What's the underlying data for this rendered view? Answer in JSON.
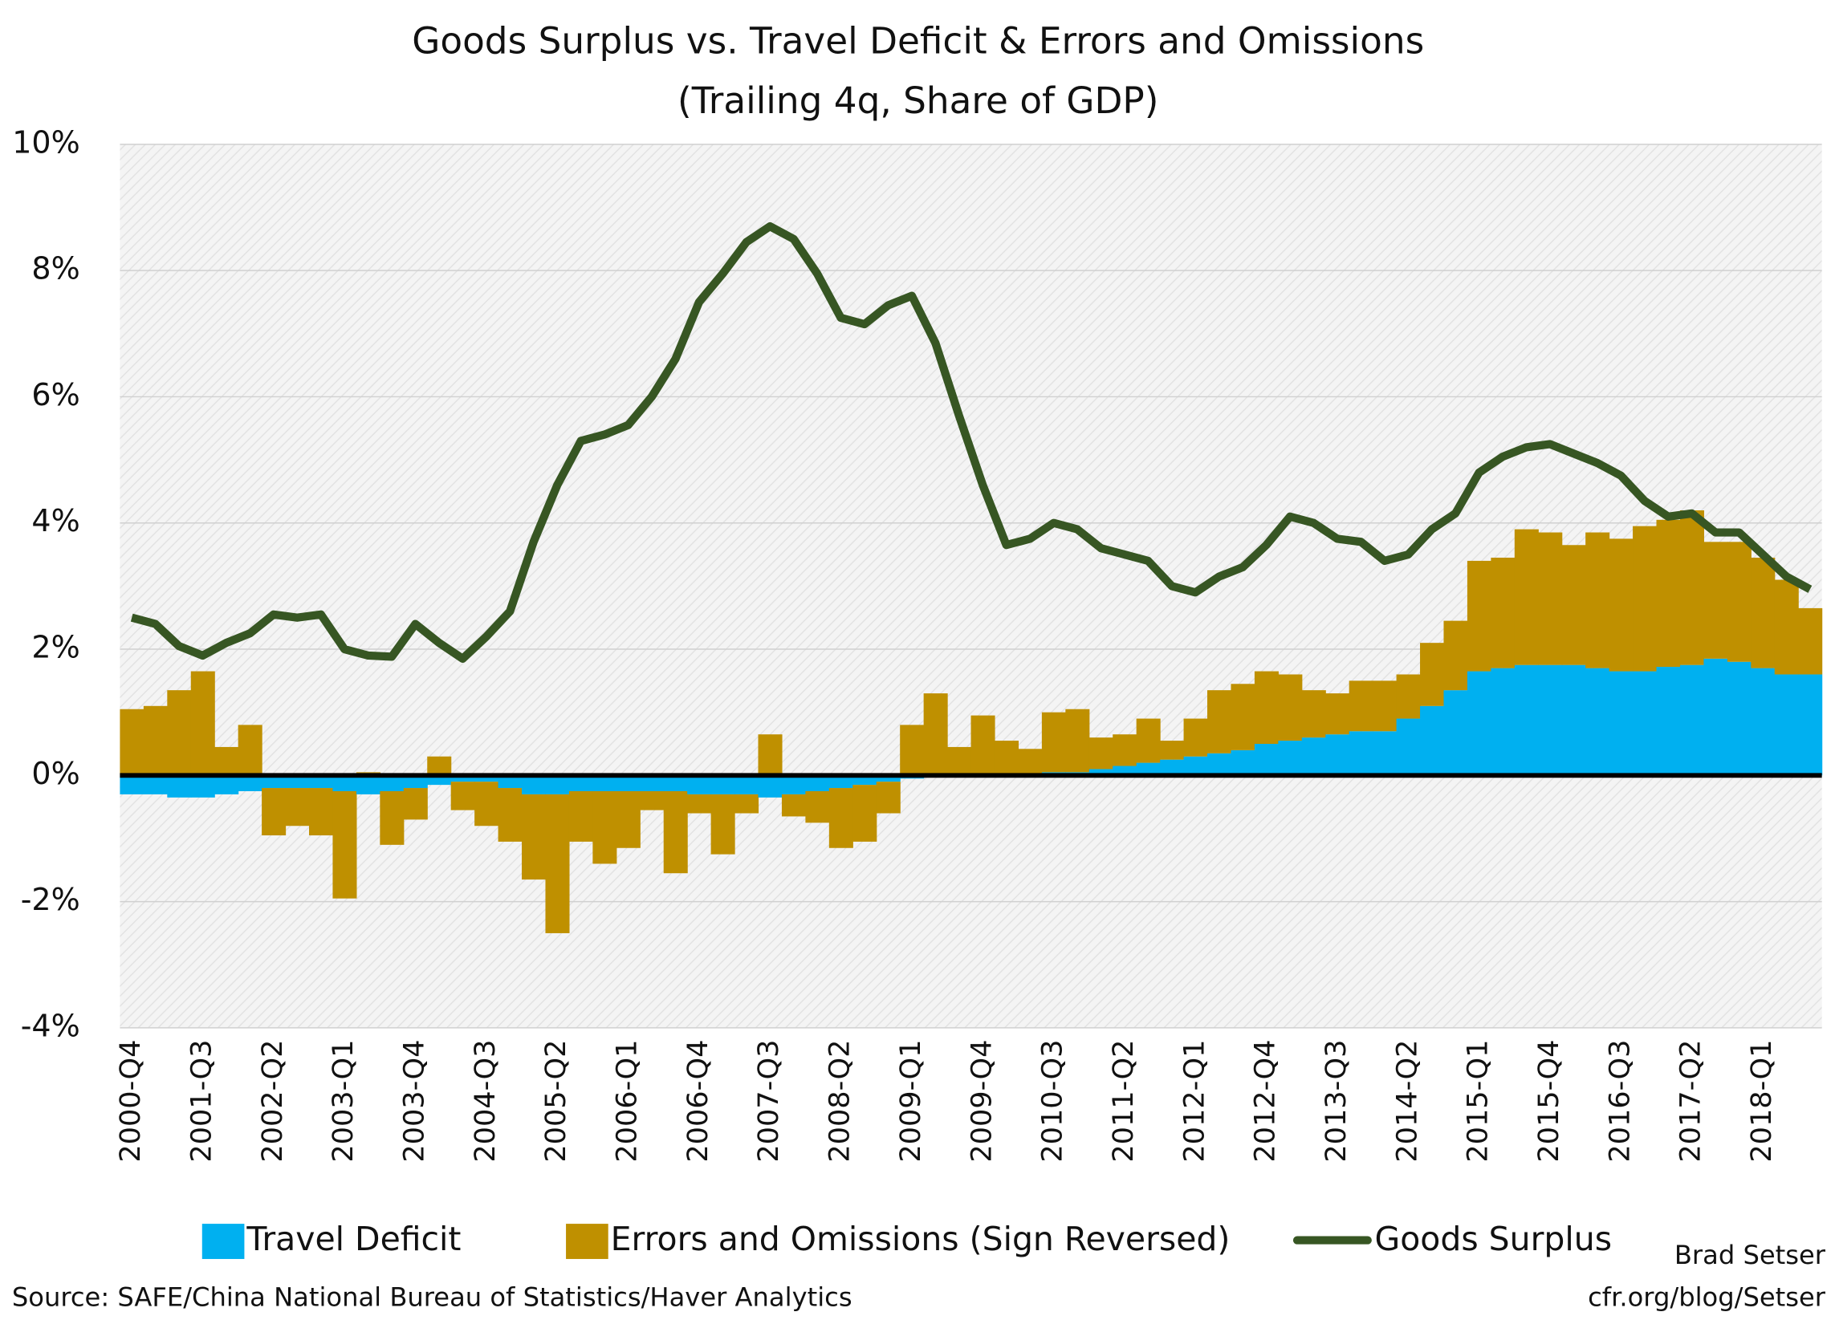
{
  "chart_data": {
    "type": "stacked_bar_line",
    "title": "Goods Surplus vs. Travel Deficit & Errors and Omissions",
    "subtitle": "(Trailing 4q, Share of GDP)",
    "categories": [
      "2000-Q4",
      null,
      null,
      "2001-Q3",
      null,
      null,
      "2002-Q2",
      null,
      null,
      "2003-Q1",
      null,
      null,
      "2003-Q4",
      null,
      null,
      "2004-Q3",
      null,
      null,
      "2005-Q2",
      null,
      null,
      "2006-Q1",
      null,
      null,
      "2006-Q4",
      null,
      null,
      "2007-Q3",
      null,
      null,
      "2008-Q2",
      null,
      null,
      "2009-Q1",
      null,
      null,
      "2009-Q4",
      null,
      null,
      "2010-Q3",
      null,
      null,
      "2011-Q2",
      null,
      null,
      "2012-Q1",
      null,
      null,
      "2012-Q4",
      null,
      null,
      "2013-Q3",
      null,
      null,
      "2014-Q2",
      null,
      null,
      "2015-Q1",
      null,
      null,
      "2015-Q4",
      null,
      null,
      "2016-Q3",
      null,
      null,
      "2017-Q2",
      null,
      null,
      "2018-Q1",
      null,
      null
    ],
    "series": [
      {
        "name": "Travel Deficit",
        "kind": "bar",
        "color": "#00b0f0",
        "values": [
          -0.3,
          -0.3,
          -0.35,
          -0.35,
          -0.3,
          -0.25,
          -0.2,
          -0.2,
          -0.2,
          -0.25,
          -0.3,
          -0.25,
          -0.2,
          -0.15,
          -0.1,
          -0.1,
          -0.2,
          -0.3,
          -0.3,
          -0.25,
          -0.25,
          -0.25,
          -0.25,
          -0.25,
          -0.3,
          -0.3,
          -0.3,
          -0.35,
          -0.3,
          -0.25,
          -0.2,
          -0.15,
          -0.1,
          -0.05,
          0,
          0,
          0,
          0,
          0.02,
          0.05,
          0.05,
          0.1,
          0.15,
          0.2,
          0.25,
          0.3,
          0.35,
          0.4,
          0.5,
          0.55,
          0.6,
          0.65,
          0.7,
          0.7,
          0.9,
          1.1,
          1.35,
          1.65,
          1.7,
          1.75,
          1.75,
          1.75,
          1.7,
          1.65,
          1.65,
          1.72,
          1.75,
          1.85,
          1.8,
          1.7,
          1.6,
          1.6
        ]
      },
      {
        "name": "Errors and Omissions (Sign Reversed)",
        "kind": "bar",
        "color": "#bf9000",
        "values": [
          1.05,
          1.1,
          1.35,
          1.65,
          0.45,
          0.8,
          -0.75,
          -0.6,
          -0.75,
          -1.7,
          0.05,
          -0.85,
          -0.5,
          0.3,
          -0.45,
          -0.7,
          -0.85,
          -1.35,
          -2.2,
          -0.8,
          -1.15,
          -0.9,
          -0.3,
          -1.3,
          -0.3,
          -0.95,
          -0.3,
          0.65,
          -0.35,
          -0.5,
          -0.95,
          -0.9,
          -0.5,
          0.8,
          1.3,
          0.45,
          0.95,
          0.55,
          0.4,
          0.95,
          1.0,
          0.5,
          0.5,
          0.7,
          0.3,
          0.6,
          1.0,
          1.05,
          1.15,
          1.05,
          0.75,
          0.65,
          0.8,
          0.8,
          0.7,
          1.0,
          1.1,
          1.75,
          1.75,
          2.15,
          2.1,
          1.9,
          2.15,
          2.1,
          2.3,
          2.33,
          2.45,
          1.85,
          1.9,
          1.75,
          1.5,
          1.05
        ]
      },
      {
        "name": "Goods Surplus",
        "kind": "line",
        "color": "#375623",
        "values": [
          2.5,
          2.4,
          2.05,
          1.9,
          2.1,
          2.25,
          2.55,
          2.5,
          2.55,
          2.0,
          1.9,
          1.88,
          2.4,
          2.1,
          1.85,
          2.2,
          2.6,
          3.7,
          4.6,
          5.3,
          5.4,
          5.55,
          6.0,
          6.6,
          7.5,
          7.95,
          8.45,
          8.7,
          8.5,
          7.95,
          7.25,
          7.15,
          7.45,
          7.6,
          6.85,
          5.7,
          4.6,
          3.65,
          3.75,
          4.0,
          3.9,
          3.6,
          3.5,
          3.4,
          3.0,
          2.9,
          3.15,
          3.3,
          3.65,
          4.1,
          4.0,
          3.75,
          3.7,
          3.4,
          3.5,
          3.9,
          4.15,
          4.8,
          5.05,
          5.2,
          5.25,
          5.1,
          4.95,
          4.75,
          4.35,
          4.1,
          4.15,
          3.85,
          3.85,
          3.5,
          3.15,
          2.95
        ]
      }
    ],
    "ylim": [
      -4,
      10
    ],
    "yticks": [
      {
        "value": -4,
        "label": "-4%"
      },
      {
        "value": -2,
        "label": "-2%"
      },
      {
        "value": 0,
        "label": "0%"
      },
      {
        "value": 2,
        "label": "2%"
      },
      {
        "value": 4,
        "label": "4%"
      },
      {
        "value": 6,
        "label": "6%"
      },
      {
        "value": 8,
        "label": "8%"
      },
      {
        "value": 10,
        "label": "10%"
      }
    ],
    "grid": true,
    "legend": "bottom",
    "source": "Source: SAFE/China National Bureau of Statistics/Haver Analytics",
    "author": "Brad Setser",
    "credit": "cfr.org/blog/Setser"
  }
}
